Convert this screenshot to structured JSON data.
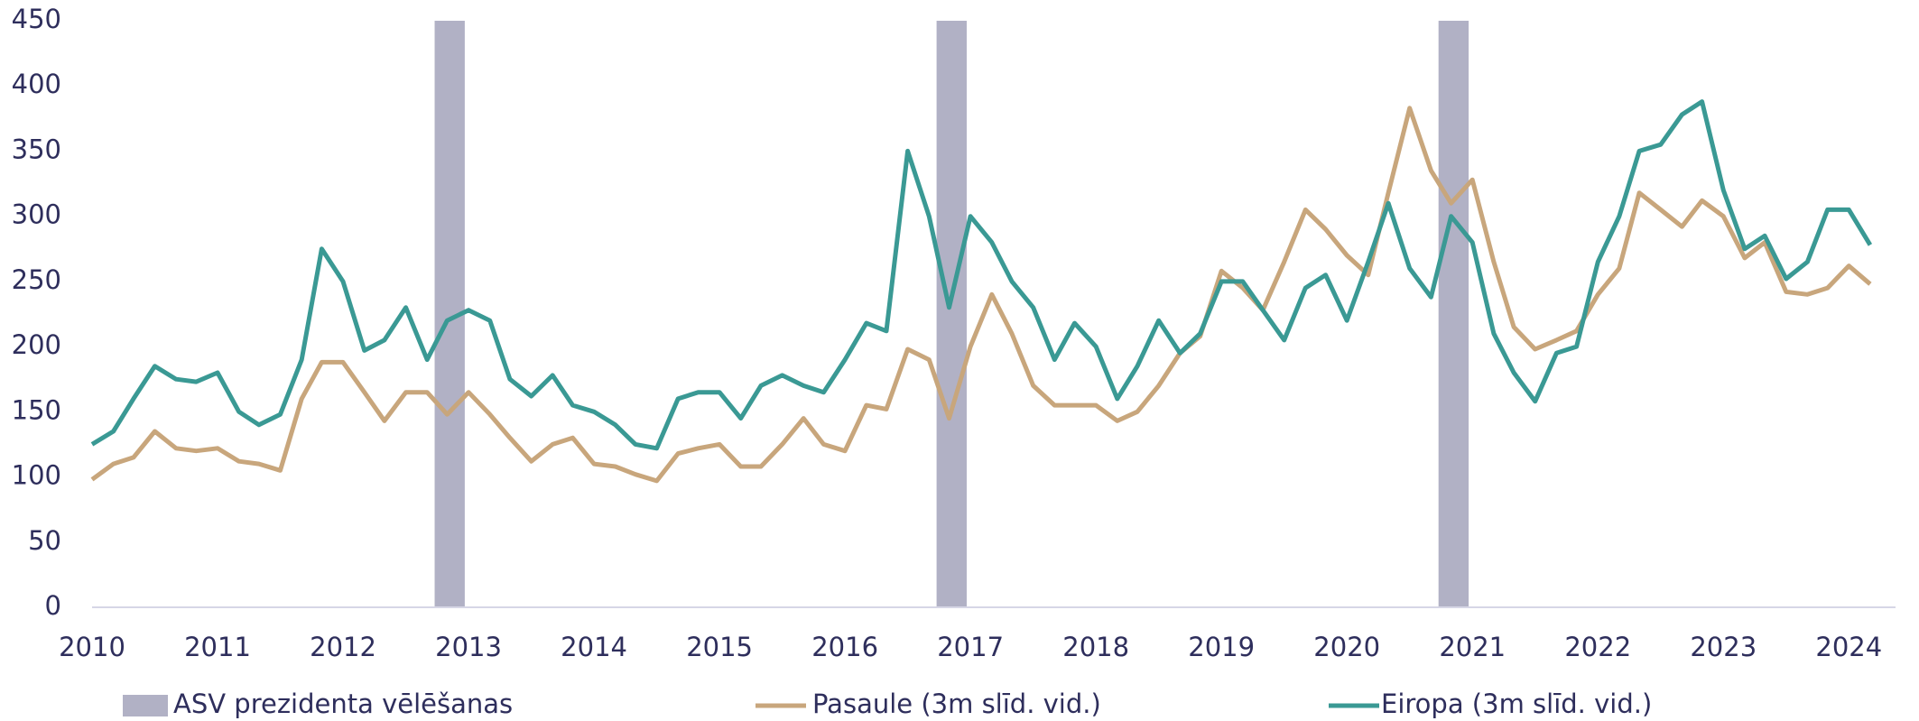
{
  "chart_data": {
    "type": "line",
    "x": [
      2010,
      2010.17,
      2010.33,
      2010.5,
      2010.67,
      2010.83,
      2011,
      2011.17,
      2011.33,
      2011.5,
      2011.67,
      2011.83,
      2012,
      2012.17,
      2012.33,
      2012.5,
      2012.67,
      2012.83,
      2013,
      2013.17,
      2013.33,
      2013.5,
      2013.67,
      2013.83,
      2014,
      2014.17,
      2014.33,
      2014.5,
      2014.67,
      2014.83,
      2015,
      2015.17,
      2015.33,
      2015.5,
      2015.67,
      2015.83,
      2016,
      2016.17,
      2016.33,
      2016.5,
      2016.67,
      2016.83,
      2017,
      2017.17,
      2017.33,
      2017.5,
      2017.67,
      2017.83,
      2018,
      2018.17,
      2018.33,
      2018.5,
      2018.67,
      2018.83,
      2019,
      2019.17,
      2019.33,
      2019.5,
      2019.67,
      2019.83,
      2020,
      2020.17,
      2020.33,
      2020.5,
      2020.67,
      2020.83,
      2021,
      2021.17,
      2021.33,
      2021.5,
      2021.67,
      2021.83,
      2022,
      2022.17,
      2022.33,
      2022.5,
      2022.67,
      2022.83,
      2023,
      2023.17,
      2023.33,
      2023.5,
      2023.67,
      2023.83,
      2024,
      2024.17
    ],
    "bands": {
      "name": "ASV prezidenta vēlēšanas",
      "color": "#b1b1c5",
      "x": [
        [
          2012.73,
          2012.97
        ],
        [
          2016.73,
          2016.97
        ],
        [
          2020.73,
          2020.97
        ]
      ]
    },
    "series": [
      {
        "name": "Pasaule (3m slīd. vid.)",
        "color": "#c8a67c",
        "values": [
          98,
          110,
          115,
          135,
          122,
          120,
          122,
          112,
          110,
          105,
          160,
          188,
          188,
          165,
          143,
          165,
          165,
          148,
          165,
          148,
          130,
          112,
          125,
          130,
          110,
          108,
          102,
          97,
          118,
          122,
          125,
          108,
          108,
          125,
          145,
          125,
          120,
          155,
          152,
          198,
          190,
          145,
          200,
          240,
          210,
          170,
          155,
          155,
          155,
          143,
          150,
          170,
          195,
          208,
          258,
          245,
          228,
          265,
          305,
          290,
          270,
          255,
          318,
          383,
          335,
          310,
          328,
          265,
          215,
          198,
          205,
          212,
          240,
          260,
          318,
          305,
          292,
          312,
          300,
          268,
          280,
          242,
          240,
          245,
          262,
          248
        ]
      },
      {
        "name": "Eiropa (3m slīd. vid.)",
        "color": "#3a9994",
        "values": [
          125,
          135,
          160,
          185,
          175,
          173,
          180,
          150,
          140,
          148,
          190,
          275,
          250,
          197,
          205,
          230,
          190,
          220,
          228,
          220,
          175,
          162,
          178,
          155,
          150,
          140,
          125,
          122,
          160,
          165,
          165,
          145,
          170,
          178,
          170,
          165,
          190,
          218,
          212,
          350,
          300,
          230,
          300,
          280,
          250,
          230,
          190,
          218,
          200,
          160,
          185,
          220,
          195,
          210,
          250,
          250,
          228,
          205,
          245,
          255,
          220,
          265,
          310,
          260,
          238,
          300,
          280,
          210,
          180,
          158,
          195,
          200,
          265,
          300,
          350,
          355,
          378,
          388,
          320,
          275,
          285,
          252,
          265,
          305,
          305,
          278
        ]
      }
    ],
    "xlim": [
      2010,
      2024.3
    ],
    "xticks": [
      2010,
      2011,
      2012,
      2013,
      2014,
      2015,
      2016,
      2017,
      2018,
      2019,
      2020,
      2021,
      2022,
      2023,
      2024
    ],
    "ylim": [
      0,
      450
    ],
    "yticks": [
      0,
      50,
      100,
      150,
      200,
      250,
      300,
      350,
      400,
      450
    ]
  }
}
